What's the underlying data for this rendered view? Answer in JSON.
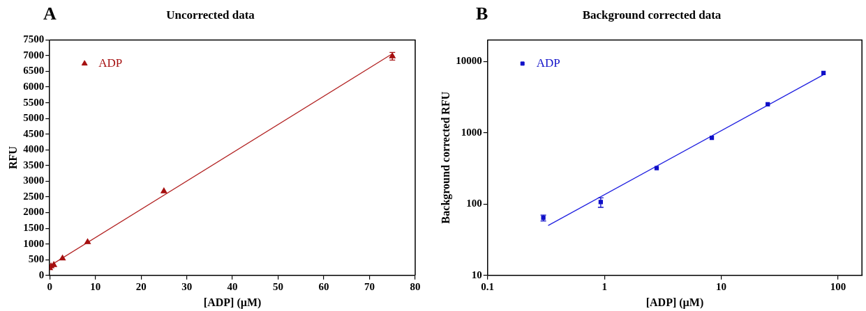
{
  "chart_data": [
    {
      "type": "scatter",
      "title": "Uncorrected data",
      "annotations": [
        "A"
      ],
      "xlabel": "[ADP] (µM)",
      "ylabel": "RFU",
      "xlim": [
        0,
        80
      ],
      "xticks": [
        0,
        10,
        20,
        30,
        40,
        50,
        60,
        70,
        80
      ],
      "ylim": [
        0,
        7500
      ],
      "yticks": [
        0,
        500,
        1000,
        1500,
        2000,
        2500,
        3000,
        3500,
        4000,
        4500,
        5000,
        5500,
        6000,
        6500,
        7000,
        7500
      ],
      "grid": false,
      "legend": "top left",
      "series": [
        {
          "name": "ADP",
          "color": "#a50f0f",
          "marker": "triangle",
          "x": [
            0,
            0.3,
            0.9,
            2.8,
            8.3,
            25,
            75
          ],
          "values": [
            230,
            290,
            330,
            540,
            1060,
            2680,
            6980
          ],
          "errors": [
            null,
            null,
            null,
            null,
            null,
            null,
            120
          ]
        },
        {
          "type": "line",
          "color": "#b22222",
          "marker": "none",
          "x": [
            0,
            75
          ],
          "values": [
            300,
            7060
          ]
        }
      ]
    },
    {
      "type": "scatter",
      "title": "Background corrected data",
      "annotations": [
        "B"
      ],
      "xlabel": "[ADP] (µM)",
      "ylabel": "Background corrected RFU",
      "log": "xy",
      "xlim": [
        0.1,
        160
      ],
      "xticks": [
        0.1,
        1,
        10,
        100
      ],
      "ylim": [
        10,
        20000
      ],
      "yticks": [
        10,
        100,
        1000,
        10000
      ],
      "grid": false,
      "legend": "top left",
      "series": [
        {
          "name": "ADP",
          "color": "#1010c8",
          "marker": "square",
          "x": [
            0.3,
            0.93,
            2.8,
            8.3,
            25,
            75
          ],
          "values": [
            64,
            107,
            320,
            850,
            2500,
            6900
          ],
          "errors": [
            [
              58,
              70
            ],
            [
              90,
              122
            ],
            null,
            null,
            null,
            null
          ]
        },
        {
          "type": "line",
          "color": "#2020e0",
          "marker": "none",
          "x": [
            0.33,
            75
          ],
          "values": [
            50,
            6500
          ]
        }
      ]
    }
  ]
}
